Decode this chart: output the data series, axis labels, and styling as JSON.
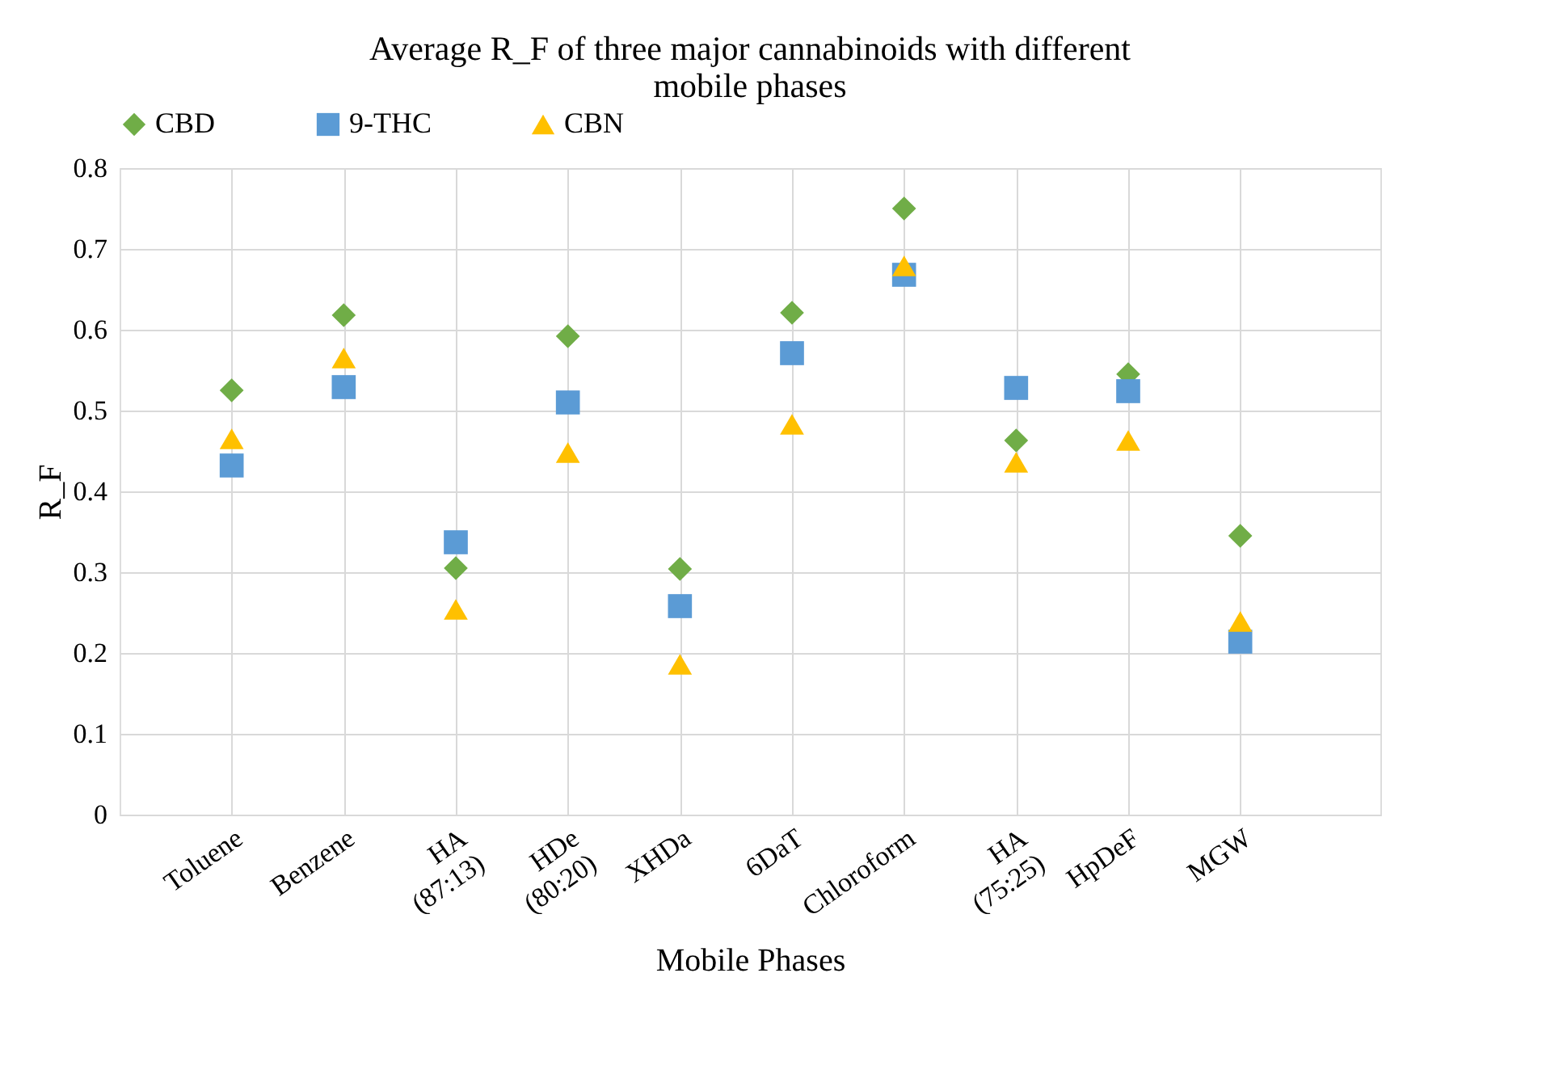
{
  "chart_data": {
    "type": "scatter",
    "title": "Average R_F of three major cannabinoids with different mobile phases",
    "xlabel": "Mobile Phases",
    "ylabel": "R_F",
    "categories": [
      "Toluene",
      "Benzene",
      "HA (87:13)",
      "HDe (80:20)",
      "XHDa",
      "6DaT",
      "Chloroform",
      "HA (75:25)",
      "HpDeF",
      "MGW"
    ],
    "series": [
      {
        "name": "CBD",
        "color": "#70ad47",
        "marker": "diamond",
        "values": [
          0.525,
          0.618,
          0.305,
          0.592,
          0.304,
          0.621,
          0.75,
          0.463,
          0.545,
          0.345
        ]
      },
      {
        "name": "9-THC",
        "color": "#5b9bd5",
        "marker": "square",
        "values": [
          0.432,
          0.529,
          0.337,
          0.51,
          0.258,
          0.571,
          0.668,
          0.528,
          0.524,
          0.214
        ]
      },
      {
        "name": "CBN",
        "color": "#ffc000",
        "marker": "triangle",
        "values": [
          0.465,
          0.565,
          0.254,
          0.448,
          0.186,
          0.483,
          0.679,
          0.436,
          0.463,
          0.239
        ]
      }
    ],
    "ylim": [
      0,
      0.8
    ],
    "yticks": [
      0,
      0.1,
      0.2,
      0.3,
      0.4,
      0.5,
      0.6,
      0.7,
      0.8
    ],
    "grid": true,
    "legend": "top"
  }
}
